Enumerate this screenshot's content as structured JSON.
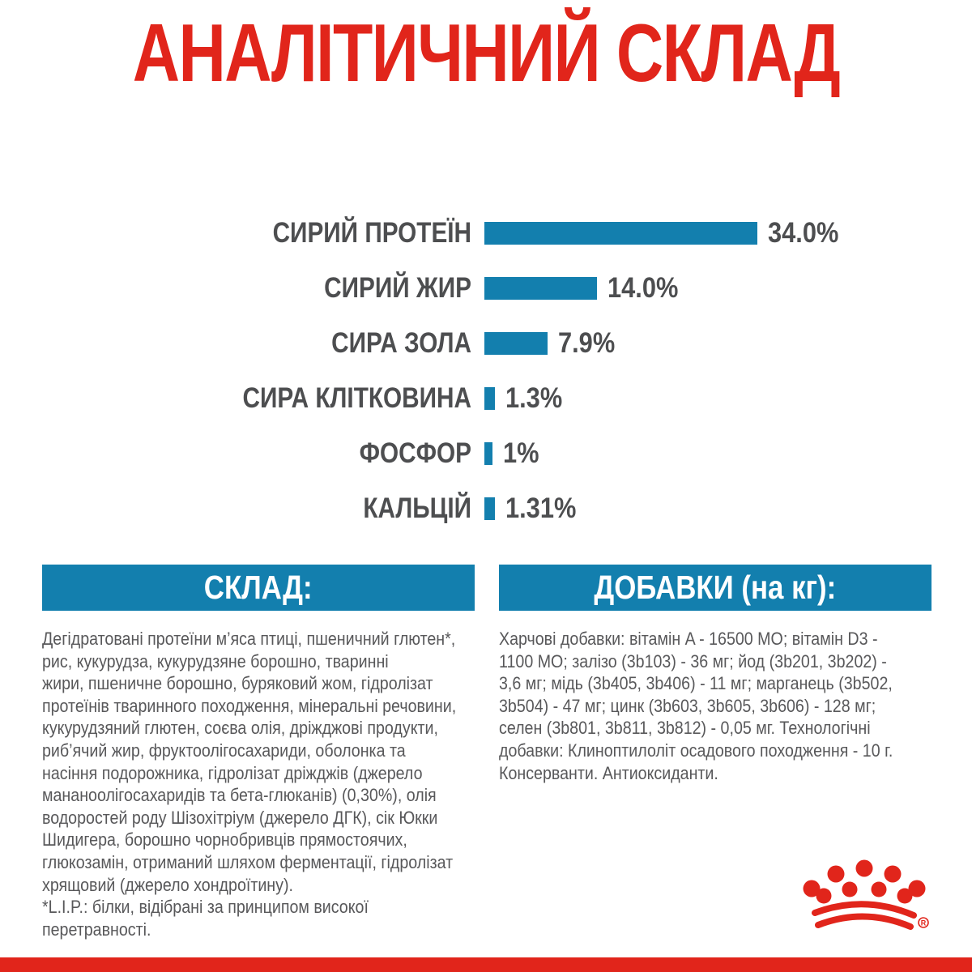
{
  "page": {
    "background": "#ffffff",
    "accent_red": "#e1251b",
    "accent_teal": "#137fae",
    "text_gray": "#58585a",
    "label_gray": "#4d4e50"
  },
  "title": "АНАЛІТИЧНИЙ СКЛАД",
  "chart_data": {
    "type": "bar",
    "orientation": "horizontal",
    "title": "АНАЛІТИЧНИЙ СКЛАД",
    "categories": [
      "СИРИЙ ПРОТЕЇН",
      "СИРИЙ ЖИР",
      "СИРА ЗОЛА",
      "СИРА КЛІТКОВИНА",
      "ФОСФОР",
      "КАЛЬЦІЙ"
    ],
    "values": [
      34.0,
      14.0,
      7.9,
      1.3,
      1.0,
      1.31
    ],
    "value_labels": [
      "34.0%",
      "14.0%",
      "7.9%",
      "1.3%",
      "1%",
      "1.31%"
    ],
    "xlim": [
      0,
      34
    ],
    "grid": false,
    "legend": false,
    "bar_color": "#137fae",
    "label_color": "#4d4e50"
  },
  "composition": {
    "header": "СКЛАД:",
    "text": "Дегідратовані протеїни м’яса птиці, пшеничний глютен*,\nрис, кукурудза, кукурудзяне борошно, тваринні\nжири, пшеничне борошно, буряковий жом, гідролізат\nпротеїнів тваринного походження, мінеральні речовини,\nкукурудзяний глютен, соєва олія, дріжджові продукти,\nриб’ячий жир, фруктоолігосахариди, оболонка та\nнасіння подорожника, гідролізат дріжджів (джерело\nмананоолігосахаридів та бета-глюканів) (0,30%), олія\nводоростей роду Шізохітріум (джерело ДГК), сік Юкки\nШидигера, борошно чорнобривців прямостоячих,\nглюкозамін, отриманий шляхом ферментації, гідролізат\nхрящовий (джерело хондроїтину).",
    "note": "*L.I.P.: білки, відібрані за принципом високої\nперетравності."
  },
  "additives": {
    "header": "ДОБАВКИ (на кг):",
    "text": "Харчові добавки: вітамін A - 16500 МО; вітамін D3 -\n1100 МО; залізо (3b103) - 36 мг; йод (3b201, 3b202) -\n3,6 мг; мідь (3b405, 3b406) - 11 мг; марганець (3b502,\n3b504) - 47 мг; цинк (3b603, 3b605, 3b606) - 128 мг;\nселен (3b801, 3b811, 3b812) - 0,05 мг. Технологічні\nдобавки: Клиноптилоліт осадового походження - 10 г.\nКонсерванти. Антиоксиданти."
  },
  "brand": {
    "logo": "royal-canin-crown",
    "logo_color": "#e1251b"
  }
}
